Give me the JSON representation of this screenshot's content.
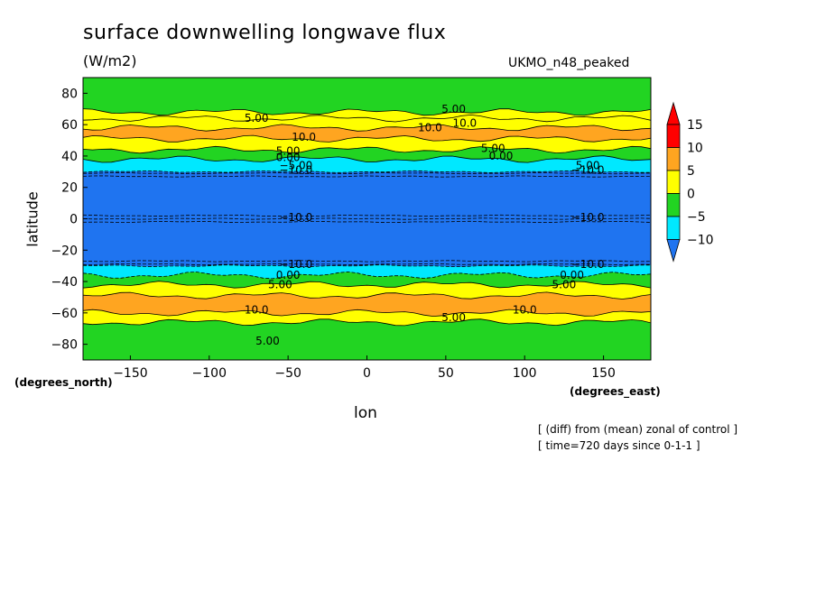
{
  "chart_data": {
    "type": "heatmap",
    "title": "surface downwelling longwave flux",
    "subtitle": "(W/m2)",
    "model_label": "UKMO_n48_peaked",
    "xlabel": "lon",
    "ylabel": "latitude",
    "x_units": "(degrees_east)",
    "y_units": "(degrees_north)",
    "xlim": [
      -180,
      180
    ],
    "ylim": [
      -90,
      90
    ],
    "x_ticks": [
      -150,
      -100,
      -50,
      0,
      50,
      100,
      150
    ],
    "x_tick_labels": [
      "−150",
      "−100",
      "−50",
      "0",
      "50",
      "100",
      "150"
    ],
    "y_ticks": [
      -80,
      -60,
      -40,
      -20,
      0,
      20,
      40,
      60,
      80
    ],
    "y_tick_labels": [
      "−80",
      "−60",
      "−40",
      "−20",
      "0",
      "20",
      "40",
      "60",
      "80"
    ],
    "colorbar": {
      "levels": [
        -10,
        -5,
        0,
        5,
        10,
        15
      ],
      "labels": [
        "−10",
        "−5",
        "0",
        "5",
        "10",
        "15"
      ],
      "colors": [
        "#1f74f0",
        "#00e8ff",
        "#22d422",
        "#ffff00",
        "#ffa520",
        "#ff0000"
      ],
      "extend_low_color": "#1f74f0",
      "extend_high_color": "#ff0000"
    },
    "zonal_bands": [
      {
        "lat_from": 90,
        "lat_to": 68,
        "value_class": 0
      },
      {
        "lat_from": 68,
        "lat_to": 64,
        "value_class": 5
      },
      {
        "lat_from": 64,
        "lat_to": 58,
        "value_class": 5
      },
      {
        "lat_from": 58,
        "lat_to": 51,
        "value_class": 10
      },
      {
        "lat_from": 51,
        "lat_to": 44,
        "value_class": 5
      },
      {
        "lat_from": 44,
        "lat_to": 38,
        "value_class": 0
      },
      {
        "lat_from": 38,
        "lat_to": 30,
        "value_class": -5
      },
      {
        "lat_from": 30,
        "lat_to": -30,
        "value_class": -10
      },
      {
        "lat_from": -30,
        "lat_to": -36,
        "value_class": -5
      },
      {
        "lat_from": -36,
        "lat_to": -42,
        "value_class": 0
      },
      {
        "lat_from": -42,
        "lat_to": -49,
        "value_class": 5
      },
      {
        "lat_from": -49,
        "lat_to": -60,
        "value_class": 10
      },
      {
        "lat_from": -60,
        "lat_to": -66,
        "value_class": 5
      },
      {
        "lat_from": -66,
        "lat_to": -90,
        "value_class": 0
      }
    ],
    "contour_labels": [
      {
        "text": "5.00",
        "lon": -70,
        "lat": 64
      },
      {
        "text": "10.0",
        "lon": -40,
        "lat": 52
      },
      {
        "text": "5.00",
        "lon": -50,
        "lat": 43
      },
      {
        "text": "0.00",
        "lon": -50,
        "lat": 39
      },
      {
        "text": "−5.00",
        "lon": -45,
        "lat": 34
      },
      {
        "text": "−10.0",
        "lon": -45,
        "lat": 31
      },
      {
        "text": "10.0",
        "lon": 40,
        "lat": 58
      },
      {
        "text": "5.00",
        "lon": 55,
        "lat": 70
      },
      {
        "text": "10.0",
        "lon": 62,
        "lat": 61
      },
      {
        "text": "5.00",
        "lon": 80,
        "lat": 45
      },
      {
        "text": "0.00",
        "lon": 85,
        "lat": 40
      },
      {
        "text": "5.00",
        "lon": 140,
        "lat": 34
      },
      {
        "text": "−10.0",
        "lon": 140,
        "lat": 31
      },
      {
        "text": "−10.0",
        "lon": -45,
        "lat": 1
      },
      {
        "text": "−10.0",
        "lon": 140,
        "lat": 1
      },
      {
        "text": "−10.0",
        "lon": -45,
        "lat": -29
      },
      {
        "text": "0.00",
        "lon": -50,
        "lat": -36
      },
      {
        "text": "5.00",
        "lon": -55,
        "lat": -42
      },
      {
        "text": "−10.0",
        "lon": 140,
        "lat": -29
      },
      {
        "text": "0.00",
        "lon": 130,
        "lat": -36
      },
      {
        "text": "5.00",
        "lon": 125,
        "lat": -42
      },
      {
        "text": "10.0",
        "lon": -70,
        "lat": -58
      },
      {
        "text": "5.00",
        "lon": 55,
        "lat": -63
      },
      {
        "text": "10.0",
        "lon": 100,
        "lat": -58
      },
      {
        "text": "5.00",
        "lon": -63,
        "lat": -78
      }
    ]
  },
  "footnote_1": "[ (diff) from (mean) zonal of control ]",
  "footnote_2": "[ time=720 days since 0-1-1 ]"
}
